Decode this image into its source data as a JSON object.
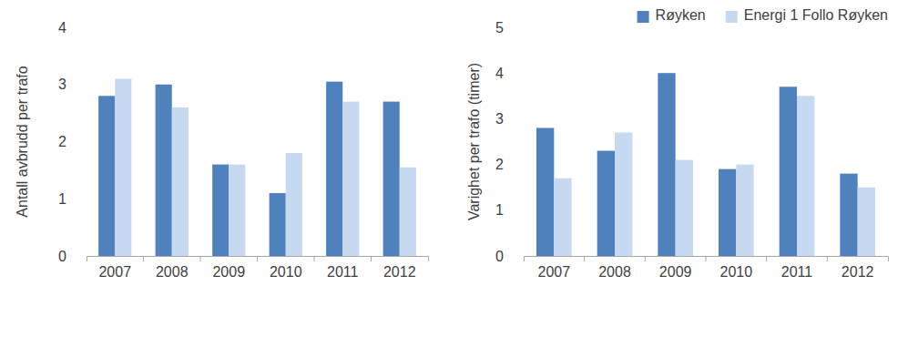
{
  "chart_data": [
    {
      "type": "bar",
      "y_label": "Antall avbrudd per trafo",
      "categories": [
        "2007",
        "2008",
        "2009",
        "2010",
        "2011",
        "2012"
      ],
      "series": [
        {
          "color": "#4f81bd",
          "values": [
            2.8,
            3.0,
            1.6,
            1.1,
            3.05,
            2.7
          ]
        },
        {
          "color": "#c6d9f1",
          "values": [
            3.1,
            2.6,
            1.6,
            1.8,
            2.7,
            1.55
          ]
        }
      ],
      "ylim": [
        0,
        4
      ],
      "yticks": [
        0,
        1,
        2,
        3,
        4
      ],
      "grid": false
    },
    {
      "type": "bar",
      "y_label": "Varighet per trafo (timer)",
      "categories": [
        "2007",
        "2008",
        "2009",
        "2010",
        "2011",
        "2012"
      ],
      "series": [
        {
          "name": "Røyken",
          "color": "#4f81bd",
          "values": [
            2.8,
            2.3,
            4.0,
            1.9,
            3.7,
            1.8
          ]
        },
        {
          "name": "Energi 1 Follo Røyken",
          "color": "#c6d9f1",
          "values": [
            1.7,
            2.7,
            2.1,
            2.0,
            3.5,
            1.5
          ]
        }
      ],
      "ylim": [
        0,
        5
      ],
      "yticks": [
        0,
        1,
        2,
        3,
        4,
        5
      ],
      "grid": false,
      "legend": "top-right"
    }
  ]
}
